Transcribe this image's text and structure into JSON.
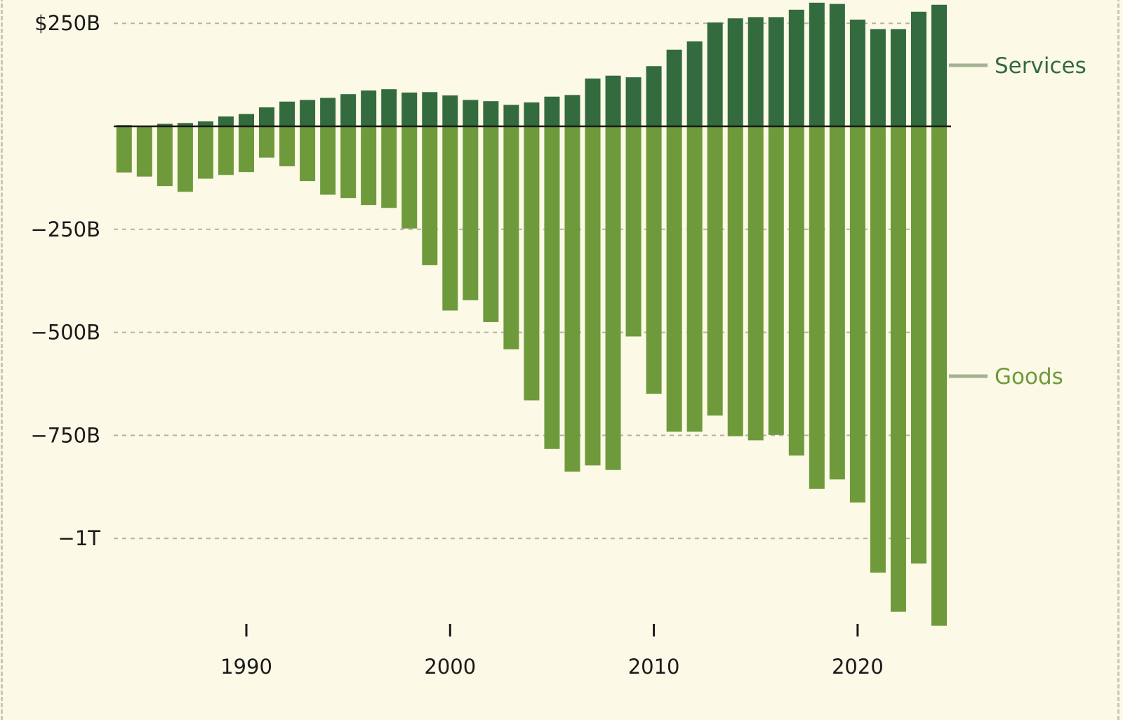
{
  "chart_data": {
    "type": "bar",
    "stacked": "diverging",
    "title": "",
    "xlabel": "",
    "ylabel": "",
    "ylim": [
      -1215,
      300
    ],
    "xlim": [
      1984,
      2024
    ],
    "grid": "horizontal dashed",
    "legend_placement": "right (direct labels)",
    "y_ticks": [
      {
        "value": 250,
        "label": "$250B"
      },
      {
        "value": -250,
        "label": "−250B"
      },
      {
        "value": -500,
        "label": "−500B"
      },
      {
        "value": -750,
        "label": "−750B"
      },
      {
        "value": -1000,
        "label": "−1T"
      }
    ],
    "x_ticks": [
      {
        "value": 1990,
        "label": "1990"
      },
      {
        "value": 2000,
        "label": "2000"
      },
      {
        "value": 2010,
        "label": "2010"
      },
      {
        "value": 2020,
        "label": "2020"
      }
    ],
    "categories": [
      1984,
      1985,
      1986,
      1987,
      1988,
      1989,
      1990,
      1991,
      1992,
      1993,
      1994,
      1995,
      1996,
      1997,
      1998,
      1999,
      2000,
      2001,
      2002,
      2003,
      2004,
      2005,
      2006,
      2007,
      2008,
      2009,
      2010,
      2011,
      2012,
      2013,
      2014,
      2015,
      2016,
      2017,
      2018,
      2019,
      2020,
      2021,
      2022,
      2023,
      2024
    ],
    "series": [
      {
        "name": "Services",
        "color": "#336b3e",
        "values": [
          3,
          1,
          6,
          8,
          12,
          24,
          30,
          46,
          60,
          64,
          69,
          78,
          87,
          90,
          82,
          83,
          75,
          64,
          61,
          52,
          58,
          72,
          76,
          116,
          123,
          119,
          146,
          186,
          206,
          252,
          262,
          265,
          265,
          283,
          300,
          297,
          259,
          236,
          236,
          278,
          295
        ]
      },
      {
        "name": "Goods",
        "color": "#6e9a3c",
        "values": [
          -112,
          -122,
          -145,
          -159,
          -127,
          -118,
          -111,
          -76,
          -97,
          -133,
          -166,
          -174,
          -191,
          -198,
          -248,
          -337,
          -447,
          -422,
          -475,
          -541,
          -665,
          -783,
          -838,
          -823,
          -834,
          -510,
          -649,
          -741,
          -741,
          -702,
          -752,
          -762,
          -749,
          -799,
          -880,
          -857,
          -913,
          -1083,
          -1178,
          -1061,
          -1212
        ]
      }
    ],
    "colors": {
      "background": "#fcf9e6",
      "grid": "#b5b3a8",
      "zero_line": "#1a1a1a",
      "legend_line": "#a3b293"
    }
  }
}
